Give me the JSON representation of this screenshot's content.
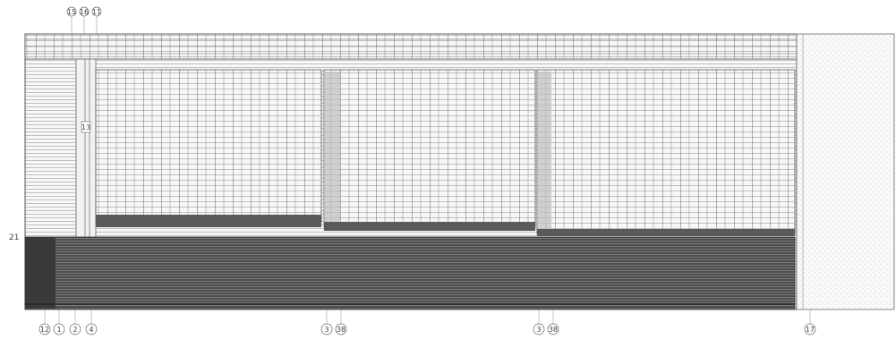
{
  "callouts": {
    "top_a": "15",
    "top_b": "16",
    "top_c": "11",
    "inner_left": "13",
    "bottom_1": "12",
    "bottom_2": "1",
    "bottom_3": "2",
    "bottom_4": "4",
    "bottom_5": "3",
    "bottom_6": "38",
    "bottom_7": "3",
    "bottom_8": "38",
    "bottom_9": "17"
  },
  "side_label": "21",
  "colors": {
    "line": "#555555",
    "dark_band": "#4a4a4a",
    "light_fill": "#f6f6f6",
    "stipple": "#e9e9e9",
    "grey_edge": "#9a9a9a"
  }
}
